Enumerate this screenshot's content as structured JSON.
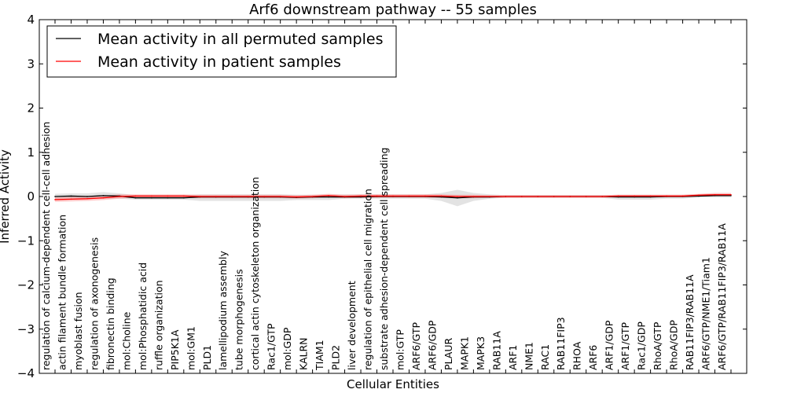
{
  "chart_data": {
    "type": "line",
    "title": "Arf6 downstream pathway -- 55 samples",
    "xlabel": "Cellular Entities",
    "ylabel": "Inferred Activity",
    "ylim": [
      -4,
      4
    ],
    "yticks": [
      "4",
      "3",
      "2",
      "1",
      "0",
      "−1",
      "−2",
      "−3",
      "−4"
    ],
    "grid": false,
    "legend_position": "top-left",
    "categories": [
      "regulation of calcium-dependent cell-cell adhesion",
      "actin filament bundle formation",
      "myoblast fusion",
      "regulation of axonogenesis",
      "fibronectin binding",
      "mol:Choline",
      "mol:Phosphatidic acid",
      "ruffle organization",
      "PIP5K1A",
      "mol:GM1",
      "PLD1",
      "lamellipodium assembly",
      "tube morphogenesis",
      "cortical actin cytoskeleton organization",
      "Rac1/GTP",
      "mol:GDP",
      "KALRN",
      "TIAM1",
      "PLD2",
      "liver development",
      "regulation of epithelial cell migration",
      "substrate adhesion-dependent cell spreading",
      "mol:GTP",
      "ARF6/GTP",
      "ARF6/GDP",
      "PLAUR",
      "MAPK1",
      "MAPK3",
      "RAB11A",
      "ARF1",
      "NME1",
      "RAC1",
      "RAB11FIP3",
      "RHOA",
      "ARF6",
      "ARF1/GDP",
      "ARF1/GTP",
      "Rac1/GDP",
      "RhoA/GTP",
      "RhoA/GDP",
      "RAB11FIP3/RAB11A",
      "ARF6/GTP/NME1/Tiam1",
      "ARF6/GTP/RAB11FIP3/RAB11A"
    ],
    "series": [
      {
        "name": "Mean activity in all permuted samples",
        "color": "#000000",
        "values": [
          0.0,
          0.01,
          0.0,
          0.02,
          0.01,
          -0.03,
          -0.03,
          -0.03,
          -0.03,
          -0.01,
          -0.01,
          -0.01,
          -0.01,
          -0.01,
          -0.01,
          -0.02,
          -0.01,
          -0.01,
          -0.01,
          -0.01,
          0.0,
          0.0,
          0.0,
          0.0,
          -0.01,
          -0.03,
          -0.01,
          -0.01,
          0.0,
          0.0,
          0.0,
          0.0,
          0.0,
          0.0,
          0.0,
          -0.01,
          -0.01,
          -0.01,
          0.0,
          0.0,
          0.01,
          0.02,
          0.02
        ],
        "band_low": [
          -0.05,
          -0.05,
          -0.05,
          -0.05,
          -0.05,
          -0.07,
          -0.07,
          -0.07,
          -0.07,
          -0.1,
          -0.1,
          -0.1,
          -0.1,
          -0.1,
          -0.1,
          -0.08,
          -0.08,
          -0.08,
          -0.05,
          -0.05,
          -0.05,
          -0.05,
          -0.05,
          -0.05,
          -0.1,
          -0.22,
          -0.1,
          -0.05,
          -0.03,
          -0.03,
          -0.03,
          -0.03,
          -0.03,
          -0.03,
          -0.03,
          -0.07,
          -0.07,
          -0.07,
          -0.05,
          -0.05,
          -0.02,
          -0.02,
          -0.02
        ],
        "band_high": [
          0.06,
          0.07,
          0.07,
          0.1,
          0.07,
          0.03,
          0.03,
          0.03,
          0.03,
          0.05,
          0.05,
          0.05,
          0.05,
          0.05,
          0.05,
          0.04,
          0.04,
          0.04,
          0.05,
          0.05,
          0.05,
          0.05,
          0.05,
          0.05,
          0.08,
          0.15,
          0.08,
          0.05,
          0.03,
          0.03,
          0.03,
          0.03,
          0.03,
          0.03,
          0.03,
          0.04,
          0.04,
          0.04,
          0.04,
          0.04,
          0.05,
          0.06,
          0.06
        ]
      },
      {
        "name": "Mean activity in patient samples",
        "color": "#ff0000",
        "values": [
          -0.07,
          -0.06,
          -0.05,
          -0.03,
          0.0,
          0.01,
          0.01,
          0.01,
          0.01,
          0.0,
          0.0,
          0.0,
          0.0,
          0.0,
          0.0,
          -0.01,
          0.0,
          0.02,
          0.0,
          0.01,
          0.01,
          0.01,
          0.01,
          0.01,
          0.01,
          0.0,
          0.0,
          0.0,
          0.0,
          0.0,
          0.0,
          0.0,
          0.0,
          0.0,
          0.0,
          0.01,
          0.01,
          0.01,
          0.01,
          0.01,
          0.03,
          0.04,
          0.04
        ],
        "band_low": [
          -0.12,
          -0.11,
          -0.1,
          -0.08,
          -0.05,
          -0.03,
          -0.03,
          -0.03,
          -0.03,
          -0.04,
          -0.04,
          -0.04,
          -0.04,
          -0.04,
          -0.04,
          -0.05,
          -0.04,
          -0.02,
          -0.04,
          -0.03,
          -0.03,
          -0.03,
          -0.03,
          -0.03,
          -0.03,
          -0.04,
          -0.04,
          -0.03,
          -0.03,
          -0.03,
          -0.03,
          -0.03,
          -0.03,
          -0.03,
          -0.03,
          -0.02,
          -0.02,
          -0.02,
          -0.02,
          -0.02,
          0.0,
          0.01,
          0.01
        ],
        "band_high": [
          -0.02,
          -0.01,
          0.0,
          0.02,
          0.05,
          0.05,
          0.05,
          0.05,
          0.05,
          0.04,
          0.04,
          0.04,
          0.04,
          0.04,
          0.04,
          0.03,
          0.04,
          0.06,
          0.04,
          0.05,
          0.05,
          0.05,
          0.05,
          0.05,
          0.05,
          0.04,
          0.04,
          0.03,
          0.03,
          0.03,
          0.03,
          0.03,
          0.03,
          0.03,
          0.03,
          0.04,
          0.04,
          0.04,
          0.04,
          0.04,
          0.06,
          0.08,
          0.08
        ]
      }
    ]
  }
}
